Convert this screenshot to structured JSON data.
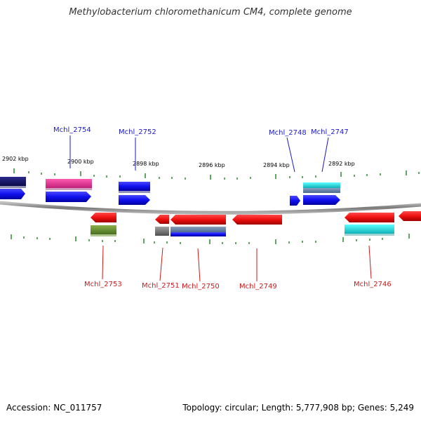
{
  "title": "Methylobacterium chloromethanicum CM4, complete genome",
  "footer": {
    "accession": "Accession: NC_011757",
    "summary": "Topology: circular; Length: 5,777,908 bp; Genes: 5,249"
  },
  "scale": {
    "ticks": [
      "2902 kbp",
      "2900 kbp",
      "2898 kbp",
      "2896 kbp",
      "2894 kbp",
      "2892 kbp"
    ]
  },
  "genes_top": [
    {
      "name": "Mchl_2754"
    },
    {
      "name": "Mchl_2752"
    },
    {
      "name": "Mchl_2748"
    },
    {
      "name": "Mchl_2747"
    }
  ],
  "genes_bottom": [
    {
      "name": "Mchl_2753"
    },
    {
      "name": "Mchl_2751"
    },
    {
      "name": "Mchl_2750"
    },
    {
      "name": "Mchl_2749"
    },
    {
      "name": "Mchl_2746"
    }
  ],
  "colors": {
    "forward_label": "#1a1acc",
    "reverse_label": "#cc1a1a",
    "backbone": "#8a8a8a",
    "ticks": "#2a8a2a"
  }
}
